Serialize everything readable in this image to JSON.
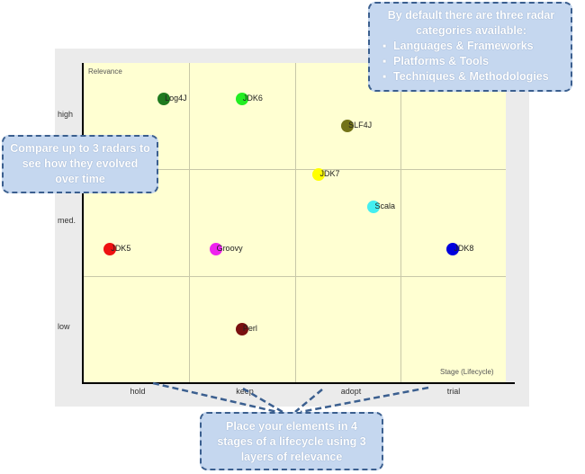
{
  "chart_data": {
    "type": "scatter",
    "title": "",
    "xlabel": "Stage (Lifecycle)",
    "ylabel": "Relevance",
    "x_categories": [
      "hold",
      "keep",
      "adopt",
      "trial"
    ],
    "y_categories": [
      "low",
      "med.",
      "high"
    ],
    "points": [
      {
        "name": "Log4J",
        "stage": 0.76,
        "relevance": 2.66,
        "color": "#1f7a1f"
      },
      {
        "name": "JDK6",
        "stage": 1.5,
        "relevance": 2.66,
        "color": "#22ee22"
      },
      {
        "name": "SLF4J",
        "stage": 2.5,
        "relevance": 2.41,
        "color": "#737318"
      },
      {
        "name": "JDK7",
        "stage": 2.23,
        "relevance": 1.95,
        "color": "#ffff00"
      },
      {
        "name": "Scala",
        "stage": 2.75,
        "relevance": 1.65,
        "color": "#44eef0"
      },
      {
        "name": "JDK5",
        "stage": 0.25,
        "relevance": 1.25,
        "color": "#ee1111"
      },
      {
        "name": "Groovy",
        "stage": 1.25,
        "relevance": 1.25,
        "color": "#ee22ee"
      },
      {
        "name": "JDK8",
        "stage": 3.5,
        "relevance": 1.25,
        "color": "#0000dd"
      },
      {
        "name": "Perl",
        "stage": 1.5,
        "relevance": 0.5,
        "color": "#7a1010"
      }
    ]
  },
  "callouts": {
    "categories": {
      "intro": "By default there are three radar categories available:",
      "items": [
        "Languages & Frameworks",
        "Platforms & Tools",
        "Techniques & Methodologies"
      ]
    },
    "compare": "Compare up to 3 radars to see how they evolved over time",
    "place": "Place your elements in 4 stages of a lifecycle using 3 layers of relevance"
  },
  "bullet_glyph": "▪"
}
